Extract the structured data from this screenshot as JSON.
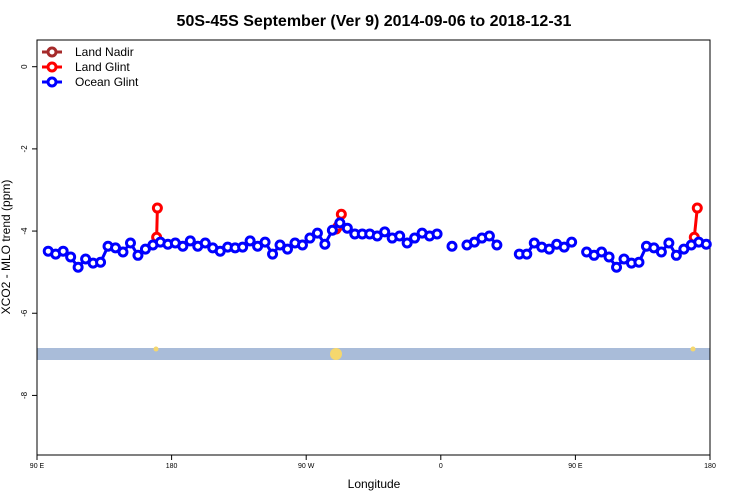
{
  "chart_data": {
    "type": "line",
    "title": "50S-45S September (Ver 9)   2014-09-06 to 2018-12-31",
    "x_label": "Longitude",
    "y_label": "XCO2 - MLO trend (ppm)",
    "xlim": [
      90,
      540
    ],
    "xticks": [
      {
        "value": 90,
        "label": "90 E"
      },
      {
        "value": 180,
        "label": "180"
      },
      {
        "value": 270,
        "label": "90 W"
      },
      {
        "value": 360,
        "label": "0"
      },
      {
        "value": 450,
        "label": "90 E"
      },
      {
        "value": 540,
        "label": "180"
      }
    ],
    "ylim": [
      -9.45,
      0.65
    ],
    "yticks": [
      0,
      -2,
      -4,
      -6,
      -8
    ],
    "legend": "top-left",
    "x": [
      97.5,
      102.5,
      107.5,
      112.5,
      117.5,
      122.5,
      127.5,
      132.5,
      137.5,
      142.5,
      147.5,
      152.5,
      157.5,
      162.5,
      167.5,
      172.5,
      177.5,
      182.5,
      187.5,
      192.5,
      197.5,
      202.5,
      207.5,
      212.5,
      217.5,
      222.5,
      227.5,
      232.5,
      237.5,
      242.5,
      247.5,
      252.5,
      257.5,
      262.5,
      267.5,
      272.5,
      277.5,
      282.5,
      287.5,
      292.5,
      297.5,
      302.5,
      307.5,
      312.5,
      317.5,
      322.5,
      327.5,
      332.5,
      337.5,
      342.5,
      347.5,
      352.5,
      357.5,
      362.5,
      367.5,
      372.5,
      377.5,
      382.5,
      387.5,
      392.5,
      397.5,
      402.5,
      407.5,
      412.5,
      417.5,
      422.5,
      427.5,
      432.5,
      437.5,
      442.5,
      447.5,
      452.5,
      457.5,
      462.5,
      467.5,
      472.5,
      477.5,
      482.5,
      487.5,
      492.5,
      497.5,
      502.5,
      507.5,
      512.5,
      517.5,
      522.5,
      527.5,
      532.5,
      537.5
    ],
    "series": [
      {
        "name": "Land Nadir",
        "color": "#a52a2a",
        "x": [],
        "values": []
      },
      {
        "name": "Land Glint",
        "color": "#ff0000",
        "x": [
          170,
          170.5,
          null,
          290,
          291.5,
          293.5,
          null,
          529.5,
          531.5
        ],
        "values": [
          -4.15,
          -3.44,
          null,
          -3.95,
          -3.88,
          -3.59,
          null,
          -4.15,
          -3.44
        ]
      },
      {
        "name": "Ocean Glint",
        "color": "#0000ff",
        "values": [
          -4.49,
          -4.56,
          -4.49,
          -4.63,
          -4.88,
          -4.68,
          -4.78,
          -4.76,
          -4.37,
          -4.41,
          -4.51,
          -4.29,
          -4.59,
          -4.44,
          -4.34,
          -4.27,
          -4.32,
          -4.29,
          -4.37,
          -4.24,
          -4.37,
          -4.29,
          -4.41,
          -4.49,
          -4.39,
          -4.41,
          -4.39,
          -4.24,
          -4.37,
          -4.27,
          -4.56,
          -4.34,
          -4.44,
          -4.29,
          -4.34,
          -4.17,
          -4.05,
          -4.32,
          -3.98,
          -3.8,
          -3.93,
          -4.07,
          -4.07,
          -4.07,
          -4.12,
          -4.02,
          -4.17,
          -4.12,
          -4.29,
          -4.17,
          -4.05,
          -4.12,
          -4.07,
          null,
          -4.37,
          null,
          -4.34,
          -4.27,
          -4.17,
          -4.12,
          -4.34,
          null,
          null,
          -4.56,
          -4.56,
          -4.29,
          -4.39,
          -4.44,
          -4.32,
          -4.39,
          -4.27,
          null,
          -4.51,
          -4.59,
          -4.51,
          -4.63,
          -4.88,
          -4.68,
          -4.78,
          -4.76,
          -4.37,
          -4.41,
          -4.51,
          -4.29,
          -4.59,
          -4.44,
          -4.34,
          -4.27,
          -4.32
        ]
      }
    ]
  }
}
